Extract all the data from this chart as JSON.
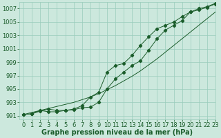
{
  "title": "",
  "xlabel": "Graphe pression niveau de la mer (hPa)",
  "ylabel": "",
  "background_color": "#cce8dd",
  "plot_bg_color": "#cce8dd",
  "grid_color": "#99ccbb",
  "line_color": "#1a5c2a",
  "marker_color": "#1a5c2a",
  "ylim": [
    990.5,
    1008
  ],
  "xlim": [
    -0.5,
    23
  ],
  "yticks": [
    991,
    993,
    995,
    997,
    999,
    1001,
    1003,
    1005,
    1007
  ],
  "xticks": [
    0,
    1,
    2,
    3,
    4,
    5,
    6,
    7,
    8,
    9,
    10,
    11,
    12,
    13,
    14,
    15,
    16,
    17,
    18,
    19,
    20,
    21,
    22,
    23
  ],
  "x": [
    0,
    1,
    2,
    3,
    4,
    5,
    6,
    7,
    8,
    9,
    10,
    11,
    12,
    13,
    14,
    15,
    16,
    17,
    18,
    19,
    20,
    21,
    22,
    23
  ],
  "y_main": [
    991.2,
    991.3,
    991.7,
    992.0,
    991.8,
    991.8,
    991.9,
    992.2,
    992.3,
    993.0,
    995.0,
    996.5,
    997.5,
    998.5,
    999.2,
    1000.8,
    1002.5,
    1003.8,
    1004.5,
    1005.2,
    1006.5,
    1006.8,
    1007.2,
    1007.7
  ],
  "y_smooth": [
    991.2,
    991.5,
    991.8,
    992.1,
    992.4,
    992.7,
    993.0,
    993.4,
    993.8,
    994.3,
    994.9,
    995.5,
    996.2,
    996.9,
    997.7,
    998.6,
    999.5,
    1000.5,
    1001.5,
    1002.5,
    1003.5,
    1004.5,
    1005.5,
    1006.5
  ],
  "y_main2": [
    991.2,
    991.3,
    991.8,
    991.6,
    991.6,
    991.8,
    992.0,
    992.5,
    993.8,
    994.5,
    997.5,
    998.5,
    998.8,
    1000.0,
    1001.5,
    1002.8,
    1004.0,
    1004.5,
    1005.0,
    1005.8,
    1006.5,
    1007.0,
    1007.3,
    1007.8
  ],
  "xlabel_fontsize": 7,
  "tick_fontsize": 6
}
